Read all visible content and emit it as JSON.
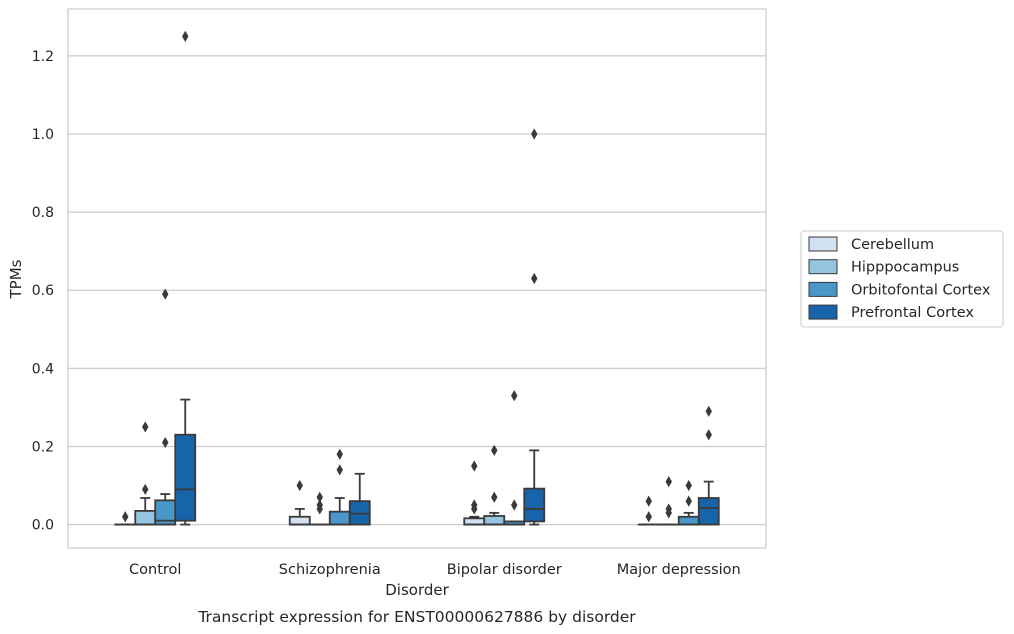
{
  "chart_data": {
    "type": "box",
    "title": "",
    "caption": "Transcript expression for ENST00000627886 by disorder",
    "xlabel": "Disorder",
    "ylabel": "TPMs",
    "ylim": [
      -0.06,
      1.32
    ],
    "yticks": [
      0.0,
      0.2,
      0.4,
      0.6,
      0.8,
      1.0,
      1.2
    ],
    "ytick_labels": [
      "0.0",
      "0.2",
      "0.4",
      "0.6",
      "0.8",
      "1.0",
      "1.2"
    ],
    "grid": true,
    "legend_position": "right",
    "categories": [
      "Control",
      "Schizophrenia",
      "Bipolar disorder",
      "Major depression"
    ],
    "series": [
      {
        "name": "Cerebellum",
        "color": "#d0e1f2",
        "boxes": [
          {
            "q1": 0.0,
            "median": 0.0,
            "q3": 0.0,
            "whislo": 0.0,
            "whishi": 0.0,
            "fliers": [
              0.02
            ]
          },
          {
            "q1": 0.0,
            "median": 0.0,
            "q3": 0.02,
            "whislo": 0.0,
            "whishi": 0.04,
            "fliers": [
              0.1
            ]
          },
          {
            "q1": 0.0,
            "median": 0.0,
            "q3": 0.016,
            "whislo": 0.0,
            "whishi": 0.02,
            "fliers": [
              0.04,
              0.05,
              0.15
            ]
          },
          {
            "q1": 0.0,
            "median": 0.0,
            "q3": 0.0,
            "whislo": 0.0,
            "whishi": 0.0,
            "fliers": [
              0.02,
              0.06
            ]
          }
        ]
      },
      {
        "name": "Hipppocampus",
        "color": "#94c4df",
        "boxes": [
          {
            "q1": 0.0,
            "median": 0.0,
            "q3": 0.035,
            "whislo": 0.0,
            "whishi": 0.068,
            "fliers": [
              0.09,
              0.25
            ]
          },
          {
            "q1": 0.0,
            "median": 0.0,
            "q3": 0.0,
            "whislo": 0.0,
            "whishi": 0.0,
            "fliers": [
              0.04,
              0.05,
              0.07
            ]
          },
          {
            "q1": 0.0,
            "median": 0.0,
            "q3": 0.022,
            "whislo": 0.0,
            "whishi": 0.03,
            "fliers": [
              0.07,
              0.19
            ]
          },
          {
            "q1": 0.0,
            "median": 0.0,
            "q3": 0.0,
            "whislo": 0.0,
            "whishi": 0.0,
            "fliers": [
              0.03,
              0.04,
              0.11
            ]
          }
        ]
      },
      {
        "name": "Orbitofontal Cortex",
        "color": "#4a98c9",
        "boxes": [
          {
            "q1": 0.0,
            "median": 0.01,
            "q3": 0.062,
            "whislo": 0.0,
            "whishi": 0.078,
            "fliers": [
              0.21,
              0.59
            ]
          },
          {
            "q1": 0.0,
            "median": 0.0,
            "q3": 0.033,
            "whislo": 0.0,
            "whishi": 0.068,
            "fliers": [
              0.14,
              0.18
            ]
          },
          {
            "q1": 0.0,
            "median": 0.0,
            "q3": 0.008,
            "whislo": 0.0,
            "whishi": 0.008,
            "fliers": [
              0.05,
              0.33
            ]
          },
          {
            "q1": 0.0,
            "median": 0.0,
            "q3": 0.02,
            "whislo": 0.0,
            "whishi": 0.03,
            "fliers": [
              0.06,
              0.1
            ]
          }
        ]
      },
      {
        "name": "Prefrontal Cortex",
        "color": "#1764ab",
        "boxes": [
          {
            "q1": 0.01,
            "median": 0.09,
            "q3": 0.23,
            "whislo": 0.0,
            "whishi": 0.32,
            "fliers": [
              1.25
            ]
          },
          {
            "q1": 0.0,
            "median": 0.028,
            "q3": 0.06,
            "whislo": 0.0,
            "whishi": 0.13,
            "fliers": []
          },
          {
            "q1": 0.008,
            "median": 0.04,
            "q3": 0.092,
            "whislo": 0.0,
            "whishi": 0.19,
            "fliers": [
              0.63,
              1.0
            ]
          },
          {
            "q1": 0.0,
            "median": 0.042,
            "q3": 0.068,
            "whislo": 0.0,
            "whishi": 0.11,
            "fliers": [
              0.23,
              0.29
            ]
          }
        ]
      }
    ]
  }
}
